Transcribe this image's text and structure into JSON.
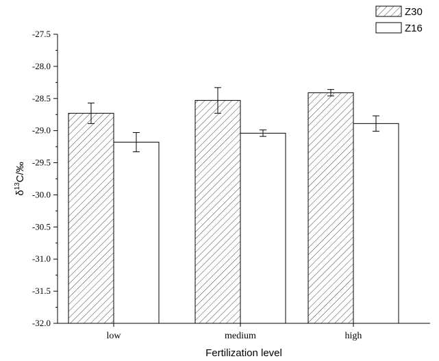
{
  "chart_data": {
    "type": "bar",
    "title": "",
    "xlabel": "Fertilization level",
    "ylabel": {
      "base": "δ",
      "sup": "13",
      "rest": "C/‰"
    },
    "categories": [
      "low",
      "medium",
      "high"
    ],
    "series": [
      {
        "name": "Z30",
        "values": [
          -28.73,
          -28.53,
          -28.41
        ],
        "errors": [
          0.16,
          0.2,
          0.05
        ],
        "fill": "hatched"
      },
      {
        "name": "Z16",
        "values": [
          -29.18,
          -29.04,
          -28.89
        ],
        "errors": [
          0.15,
          0.05,
          0.12
        ],
        "fill": "white"
      }
    ],
    "ylim": [
      -32.0,
      -27.5
    ],
    "yticks": [
      -27.5,
      -28.0,
      -28.5,
      -29.0,
      -29.5,
      -30.0,
      -30.5,
      -31.0,
      -31.5,
      -32.0
    ],
    "ytick_labels": [
      "-27.5",
      "-28.0",
      "-28.5",
      "-29.0",
      "-29.5",
      "-30.0",
      "-30.5",
      "-31.0",
      "-31.5",
      "-32.0"
    ],
    "grid": false,
    "legend_position": "top-right",
    "colors": {
      "stroke": "#000000",
      "background": "#ffffff",
      "hatch": "#444444"
    }
  }
}
